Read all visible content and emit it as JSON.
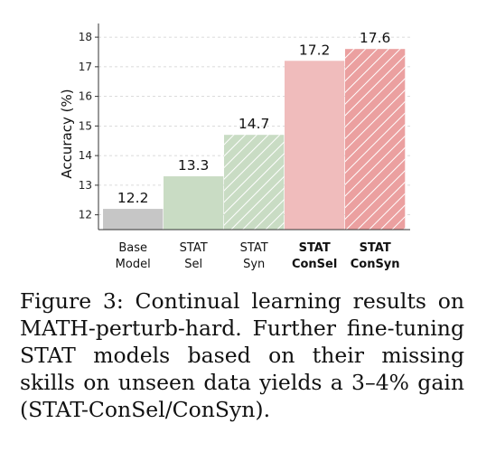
{
  "chart_data": {
    "type": "bar",
    "categories": [
      {
        "line1": "Base",
        "line2": "Model",
        "bold": false
      },
      {
        "line1": "STAT",
        "line2": "Sel",
        "bold": false
      },
      {
        "line1": "STAT",
        "line2": "Syn",
        "bold": false
      },
      {
        "line1": "STAT",
        "line2": "ConSel",
        "bold": true
      },
      {
        "line1": "STAT",
        "line2": "ConSyn",
        "bold": true
      }
    ],
    "values": [
      12.2,
      13.3,
      14.7,
      17.2,
      17.6
    ],
    "value_labels": [
      "12.2",
      "13.3",
      "14.7",
      "17.2",
      "17.6"
    ],
    "colors": [
      "#c6c6c6",
      "#c9dcc4",
      "#c9dcc4",
      "#f0bcbc",
      "#eba0a0"
    ],
    "hatched": [
      false,
      false,
      true,
      false,
      true
    ],
    "ylabel": "Accuracy (%)",
    "ylim": [
      11.5,
      18.4
    ],
    "yticks": [
      "12",
      "13",
      "14",
      "15",
      "16",
      "17",
      "18"
    ],
    "grid": true
  },
  "caption": "Figure 3: Continual learning results on MATH-perturb-hard. Further fine-tuning STAT models based on their missing skills on unseen data yields a 3–4% gain (STAT-ConSel/ConSyn)."
}
